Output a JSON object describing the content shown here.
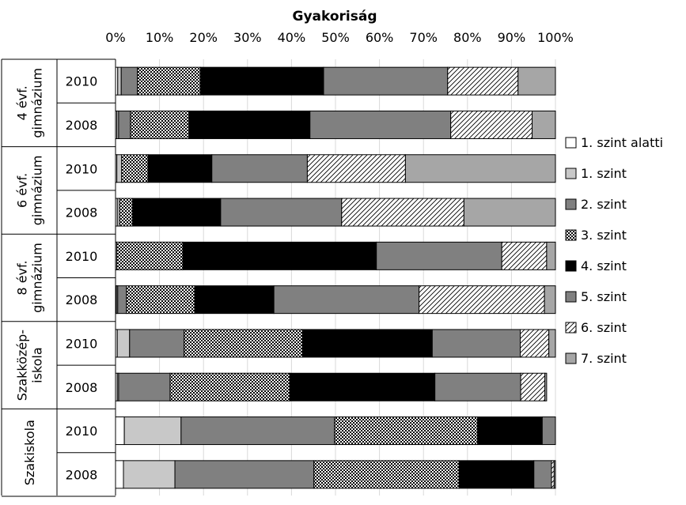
{
  "chart_data": {
    "type": "bar",
    "orientation": "horizontal",
    "stacked": "percent",
    "title": "Gyakoriság",
    "xlim": [
      0,
      100
    ],
    "x_ticks": [
      "0%",
      "10%",
      "20%",
      "30%",
      "40%",
      "50%",
      "60%",
      "70%",
      "80%",
      "90%",
      "100%"
    ],
    "groups": [
      {
        "label": [
          "4 évf.",
          "gimnázium"
        ],
        "rows": [
          "2010",
          "2008"
        ]
      },
      {
        "label": [
          "6 évf.",
          "gimnázium"
        ],
        "rows": [
          "2010",
          "2008"
        ]
      },
      {
        "label": [
          "8 évf.",
          "gimnázium"
        ],
        "rows": [
          "2010",
          "2008"
        ]
      },
      {
        "label": [
          "Szakközép-",
          "iskola"
        ],
        "rows": [
          "2010",
          "2008"
        ]
      },
      {
        "label": [
          "Szakiskola"
        ],
        "rows": [
          "2010",
          "2008"
        ]
      }
    ],
    "categories": [
      "4 évf. gimnázium 2010",
      "4 évf. gimnázium 2008",
      "6 évf. gimnázium 2010",
      "6 évf. gimnázium 2008",
      "8 évf. gimnázium 2010",
      "8 évf. gimnázium 2008",
      "Szakközépiskola 2010",
      "Szakközépiskola 2008",
      "Szakiskola 2010",
      "Szakiskola 2008"
    ],
    "series": [
      {
        "name": "1. szint alatti",
        "pattern": "white",
        "values": [
          0.5,
          0.3,
          0.3,
          0.4,
          0.0,
          0.2,
          0.4,
          0.4,
          2.0,
          1.8
        ]
      },
      {
        "name": "1. szint",
        "pattern": "lightgray",
        "values": [
          0.8,
          0.4,
          1.1,
          0.5,
          0.3,
          0.3,
          2.8,
          0.3,
          12.9,
          11.7
        ]
      },
      {
        "name": "2. szint",
        "pattern": "gray",
        "values": [
          3.7,
          2.7,
          0.0,
          0.0,
          0.0,
          2.0,
          12.4,
          11.7,
          34.9,
          31.6
        ]
      },
      {
        "name": "3. szint",
        "pattern": "checker",
        "values": [
          14.3,
          13.3,
          6.0,
          3.0,
          15.0,
          15.5,
          26.9,
          27.2,
          32.5,
          33.0
        ]
      },
      {
        "name": "4. szint",
        "pattern": "black",
        "values": [
          28.0,
          27.5,
          14.5,
          20.0,
          44.0,
          18.0,
          29.5,
          33.0,
          14.7,
          17.0
        ]
      },
      {
        "name": "5. szint",
        "pattern": "gray",
        "values": [
          28.2,
          32.0,
          21.7,
          27.5,
          28.5,
          33.0,
          20.0,
          19.5,
          3.0,
          4.0
        ]
      },
      {
        "name": "6. szint",
        "pattern": "hatch",
        "values": [
          16.0,
          18.5,
          22.3,
          27.8,
          10.2,
          28.5,
          6.5,
          5.5,
          0.0,
          0.6
        ]
      },
      {
        "name": "7. szint",
        "pattern": "gray-light",
        "values": [
          8.5,
          5.3,
          34.1,
          20.8,
          2.0,
          2.5,
          1.5,
          0.4,
          0.0,
          0.3
        ]
      }
    ],
    "colors": {
      "white": "#ffffff",
      "lightgray": "#c8c8c8",
      "gray": "#808080",
      "gray-light": "#a6a6a6",
      "black": "#000000"
    },
    "legend_position": "right",
    "grid": true
  }
}
